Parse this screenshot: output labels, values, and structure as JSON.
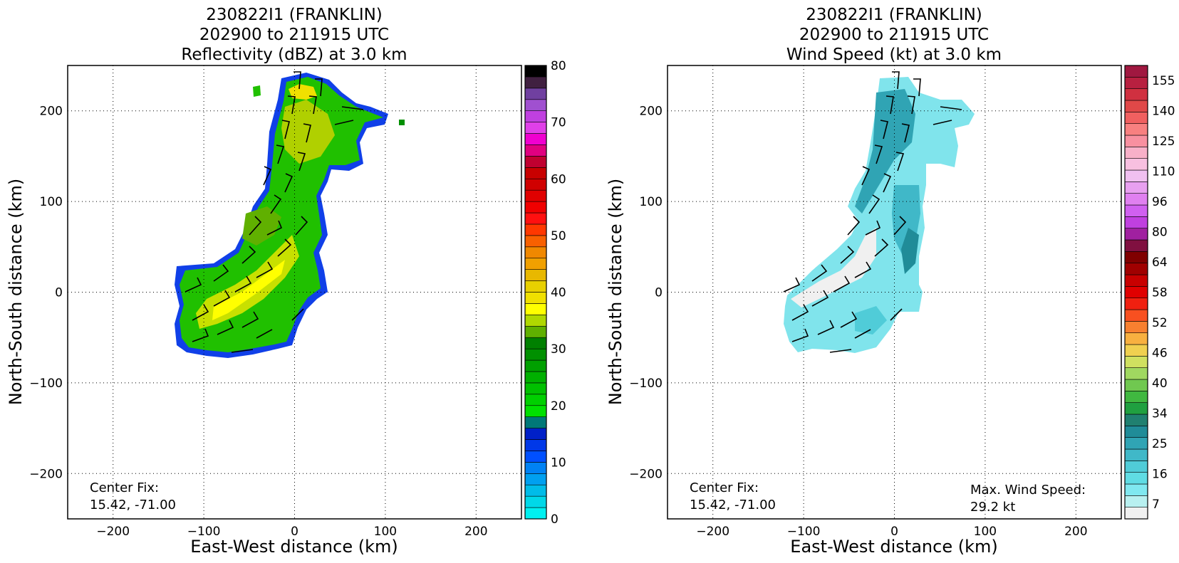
{
  "chart_data": [
    {
      "type": "heatmap",
      "title_lines": [
        "230822I1 (FRANKLIN)",
        "202900 to 211915 UTC",
        "Reflectivity (dBZ) at 3.0 km"
      ],
      "xlabel": "East-West distance (km)",
      "ylabel": "North-South distance (km)",
      "xlim": [
        -250,
        250
      ],
      "ylim": [
        -250,
        250
      ],
      "xticks": [
        -200,
        -100,
        0,
        100,
        200
      ],
      "yticks": [
        -200,
        -100,
        0,
        100,
        200
      ],
      "grid": true,
      "center_fix_label": "Center Fix:",
      "center_fix_value": "15.42, -71.00",
      "colorbar": {
        "min": 0,
        "max": 80,
        "ticks": [
          "0",
          "10",
          "20",
          "30",
          "40",
          "50",
          "60",
          "70",
          "80"
        ],
        "colors": [
          "#00f0f0",
          "#00d8e8",
          "#00bce8",
          "#00a0f0",
          "#0082f4",
          "#0050ff",
          "#0038e8",
          "#0020c8",
          "#007878",
          "#00e000",
          "#00d000",
          "#00c000",
          "#00b000",
          "#00a000",
          "#009000",
          "#008000",
          "#60b000",
          "#b0d800",
          "#ffff00",
          "#f0e000",
          "#e8d000",
          "#e8b800",
          "#f0a000",
          "#f08800",
          "#f86000",
          "#ff3800",
          "#ff1010",
          "#f00000",
          "#e00000",
          "#d00000",
          "#c80000",
          "#c00030",
          "#e00080",
          "#f000d0",
          "#e040e8",
          "#c040e0",
          "#a050d0",
          "#7040a0",
          "#402040",
          "#000000"
        ]
      },
      "wind_barbs": true
    },
    {
      "type": "heatmap",
      "title_lines": [
        "230822I1 (FRANKLIN)",
        "202900 to 211915 UTC",
        "Wind Speed (kt) at 3.0 km"
      ],
      "xlabel": "East-West distance (km)",
      "ylabel": "North-South distance (km)",
      "xlim": [
        -250,
        250
      ],
      "ylim": [
        -250,
        250
      ],
      "xticks": [
        -200,
        -100,
        0,
        100,
        200
      ],
      "yticks": [
        -200,
        -100,
        0,
        100,
        200
      ],
      "grid": true,
      "center_fix_label": "Center Fix:",
      "center_fix_value": "15.42, -71.00",
      "max_wind_label": "Max. Wind Speed:",
      "max_wind_value": "29.2 kt",
      "colorbar": {
        "ticks": [
          "7",
          "16",
          "25",
          "34",
          "40",
          "46",
          "52",
          "58",
          "64",
          "80",
          "96",
          "110",
          "125",
          "140",
          "155"
        ],
        "colors": [
          "#f0f0f0",
          "#b8f0f0",
          "#80e8f0",
          "#60dce4",
          "#50ccd8",
          "#40b8c8",
          "#30a4b4",
          "#208c98",
          "#208070",
          "#20a040",
          "#40b840",
          "#70c850",
          "#a0d860",
          "#d0e060",
          "#f0d050",
          "#f8b040",
          "#f88030",
          "#f85020",
          "#f02010",
          "#e00000",
          "#c80000",
          "#a00000",
          "#800000",
          "#801040",
          "#a020a0",
          "#c040e0",
          "#d060f0",
          "#e080f0",
          "#e8a0f0",
          "#f0c0f0",
          "#f8c0e0",
          "#f8b0c8",
          "#f890a0",
          "#f88080",
          "#f06060",
          "#e04848",
          "#d03040",
          "#b82040",
          "#a01840"
        ]
      },
      "wind_barbs": true
    }
  ]
}
